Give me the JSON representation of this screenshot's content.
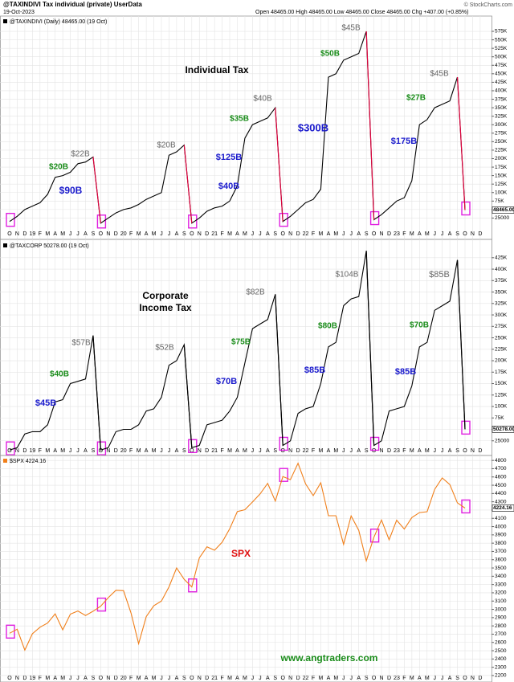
{
  "header": {
    "title": "@TAXINDIVI Tax individual (private) UserData",
    "date": "19-Oct-2023",
    "ohlc": "Open 48465.00  High 48465.00  Low 48465.00  Close 48465.00  Chg +407.00 (+0.85%)",
    "source": "© StockCharts.com"
  },
  "chart_data": [
    {
      "type": "line",
      "grid": true,
      "categories": [
        "O",
        "N",
        "D",
        "19",
        "F",
        "M",
        "A",
        "M",
        "J",
        "J",
        "A",
        "S",
        "O",
        "N",
        "D",
        "20",
        "F",
        "M",
        "A",
        "M",
        "J",
        "J",
        "A",
        "S",
        "O",
        "N",
        "D",
        "21",
        "F",
        "M",
        "A",
        "M",
        "J",
        "J",
        "A",
        "S",
        "O",
        "N",
        "D",
        "22",
        "F",
        "M",
        "A",
        "M",
        "J",
        "J",
        "A",
        "S",
        "O",
        "N",
        "D",
        "23",
        "F",
        "M",
        "A",
        "M",
        "J",
        "J",
        "A",
        "S",
        "O",
        "N",
        "D"
      ],
      "series": [
        {
          "name": "@TAXINDIVI (Daily) 48465.00 (19 Oct)",
          "color": "#000000",
          "values": [
            15000,
            30000,
            50000,
            60000,
            70000,
            95000,
            145000,
            150000,
            160000,
            185000,
            190000,
            205000,
            10000,
            25000,
            40000,
            50000,
            55000,
            65000,
            80000,
            90000,
            100000,
            210000,
            220000,
            240000,
            10000,
            25000,
            45000,
            55000,
            60000,
            75000,
            120000,
            260000,
            300000,
            310000,
            320000,
            350000,
            15000,
            30000,
            50000,
            70000,
            80000,
            110000,
            440000,
            450000,
            490000,
            500000,
            510000,
            575000,
            20000,
            35000,
            55000,
            75000,
            85000,
            135000,
            300000,
            315000,
            350000,
            360000,
            370000,
            440000,
            48465,
            null,
            null
          ]
        }
      ],
      "last_value": 48465,
      "last_value_label": "48465.00",
      "reset_color": "#e0003c",
      "ylim": [
        0,
        620000
      ],
      "yticks": [
        {
          "value": 25000,
          "label": "25000"
        },
        {
          "value": 50000,
          "label": "50K"
        },
        {
          "value": 75000,
          "label": "75K"
        },
        {
          "value": 100000,
          "label": "100K"
        },
        {
          "value": 125000,
          "label": "125K"
        },
        {
          "value": 150000,
          "label": "150K"
        },
        {
          "value": 175000,
          "label": "175K"
        },
        {
          "value": 200000,
          "label": "200K"
        },
        {
          "value": 225000,
          "label": "225K"
        },
        {
          "value": 250000,
          "label": "250K"
        },
        {
          "value": 275000,
          "label": "275K"
        },
        {
          "value": 300000,
          "label": "300K"
        },
        {
          "value": 325000,
          "label": "325K"
        },
        {
          "value": 350000,
          "label": "350K"
        },
        {
          "value": 375000,
          "label": "375K"
        },
        {
          "value": 400000,
          "label": "400K"
        },
        {
          "value": 425000,
          "label": "425K"
        },
        {
          "value": 450000,
          "label": "450K"
        },
        {
          "value": 475000,
          "label": "475K"
        },
        {
          "value": 500000,
          "label": "500K"
        },
        {
          "value": 525000,
          "label": "525K"
        },
        {
          "value": 550000,
          "label": "550K"
        },
        {
          "value": 575000,
          "label": "575K"
        }
      ],
      "annotations": [
        {
          "text": "Individual Tax",
          "color": "#000000"
        },
        {
          "text": "$20B",
          "color": "#1a8c1a"
        },
        {
          "text": "$22B",
          "color": "#666666"
        },
        {
          "text": "$90B",
          "color": "#1a1acc"
        },
        {
          "text": "$20B",
          "color": "#666666"
        },
        {
          "text": "$40B",
          "color": "#666666"
        },
        {
          "text": "$35B",
          "color": "#1a8c1a"
        },
        {
          "text": "$125B",
          "color": "#1a1acc"
        },
        {
          "text": "$40B",
          "color": "#1a1acc"
        },
        {
          "text": "$45B",
          "color": "#666666"
        },
        {
          "text": "$50B",
          "color": "#1a8c1a"
        },
        {
          "text": "$300B",
          "color": "#1a1acc"
        },
        {
          "text": "$45B",
          "color": "#666666"
        },
        {
          "text": "$27B",
          "color": "#1a8c1a"
        },
        {
          "text": "$175B",
          "color": "#1a1acc"
        }
      ]
    },
    {
      "type": "line",
      "grid": true,
      "categories": [
        "O",
        "N",
        "D",
        "19",
        "F",
        "M",
        "A",
        "M",
        "J",
        "J",
        "A",
        "S",
        "O",
        "N",
        "D",
        "20",
        "F",
        "M",
        "A",
        "M",
        "J",
        "J",
        "A",
        "S",
        "O",
        "N",
        "D",
        "21",
        "F",
        "M",
        "A",
        "M",
        "J",
        "J",
        "A",
        "S",
        "O",
        "N",
        "D",
        "22",
        "F",
        "M",
        "A",
        "M",
        "J",
        "J",
        "A",
        "S",
        "O",
        "N",
        "D",
        "23",
        "F",
        "M",
        "A",
        "M",
        "J",
        "J",
        "A",
        "S",
        "O",
        "N",
        "D"
      ],
      "series": [
        {
          "name": "@TAXCORP 50278.00 (19 Oct)",
          "color": "#000000",
          "values": [
            5000,
            10000,
            40000,
            45000,
            45000,
            60000,
            110000,
            115000,
            150000,
            155000,
            160000,
            255000,
            5000,
            10000,
            45000,
            50000,
            50000,
            60000,
            90000,
            95000,
            120000,
            190000,
            200000,
            235000,
            10000,
            15000,
            60000,
            65000,
            70000,
            90000,
            120000,
            195000,
            270000,
            280000,
            290000,
            345000,
            15000,
            25000,
            85000,
            95000,
            100000,
            150000,
            230000,
            240000,
            320000,
            335000,
            340000,
            440000,
            15000,
            25000,
            90000,
            95000,
            100000,
            145000,
            230000,
            240000,
            310000,
            320000,
            330000,
            420000,
            50278,
            null,
            null
          ]
        }
      ],
      "last_value": 50278,
      "last_value_label": "50278.00",
      "reset_color": "#000000",
      "ylim": [
        0,
        458000
      ],
      "yticks": [
        {
          "value": 25000,
          "label": "25000"
        },
        {
          "value": 50000,
          "label": "50K"
        },
        {
          "value": 75000,
          "label": "75K"
        },
        {
          "value": 100000,
          "label": "100K"
        },
        {
          "value": 125000,
          "label": "125K"
        },
        {
          "value": 150000,
          "label": "150K"
        },
        {
          "value": 175000,
          "label": "175K"
        },
        {
          "value": 200000,
          "label": "200K"
        },
        {
          "value": 225000,
          "label": "225K"
        },
        {
          "value": 250000,
          "label": "250K"
        },
        {
          "value": 275000,
          "label": "275K"
        },
        {
          "value": 300000,
          "label": "300K"
        },
        {
          "value": 325000,
          "label": "325K"
        },
        {
          "value": 350000,
          "label": "350K"
        },
        {
          "value": 375000,
          "label": "375K"
        },
        {
          "value": 400000,
          "label": "400K"
        },
        {
          "value": 425000,
          "label": "425K"
        }
      ],
      "annotations": [
        {
          "text": "Corporate",
          "color": "#000000"
        },
        {
          "text": "Income Tax",
          "color": "#000000"
        },
        {
          "text": "$57B",
          "color": "#666666"
        },
        {
          "text": "$40B",
          "color": "#1a8c1a"
        },
        {
          "text": "$45B",
          "color": "#1a1acc"
        },
        {
          "text": "$52B",
          "color": "#666666"
        },
        {
          "text": "$82B",
          "color": "#666666"
        },
        {
          "text": "$75B",
          "color": "#1a8c1a"
        },
        {
          "text": "$70B",
          "color": "#1a1acc"
        },
        {
          "text": "$104B",
          "color": "#666666"
        },
        {
          "text": "$80B",
          "color": "#1a8c1a"
        },
        {
          "text": "$85B",
          "color": "#1a1acc"
        },
        {
          "text": "$85B",
          "color": "#666666"
        },
        {
          "text": "$70B",
          "color": "#1a8c1a"
        },
        {
          "text": "$85B",
          "color": "#1a1acc"
        }
      ]
    },
    {
      "type": "line",
      "grid": true,
      "categories": [
        "O",
        "N",
        "D",
        "19",
        "F",
        "M",
        "A",
        "M",
        "J",
        "J",
        "A",
        "S",
        "O",
        "N",
        "D",
        "20",
        "F",
        "M",
        "A",
        "M",
        "J",
        "J",
        "A",
        "S",
        "O",
        "N",
        "D",
        "21",
        "F",
        "M",
        "A",
        "M",
        "J",
        "J",
        "A",
        "S",
        "O",
        "N",
        "D",
        "22",
        "F",
        "M",
        "A",
        "M",
        "J",
        "J",
        "A",
        "S",
        "O",
        "N",
        "D",
        "23",
        "F",
        "M",
        "A",
        "M",
        "J",
        "J",
        "A",
        "S",
        "O",
        "N",
        "D"
      ],
      "series": [
        {
          "name": "$SPX 4224.16",
          "color": "#f07f1a",
          "values": [
            2711,
            2760,
            2507,
            2704,
            2784,
            2834,
            2946,
            2752,
            2942,
            2980,
            2926,
            2977,
            3038,
            3141,
            3231,
            3226,
            2954,
            2585,
            2912,
            3044,
            3100,
            3271,
            3500,
            3363,
            3270,
            3622,
            3756,
            3714,
            3811,
            3973,
            4181,
            4204,
            4298,
            4395,
            4523,
            4308,
            4605,
            4567,
            4766,
            4516,
            4374,
            4530,
            4132,
            4132,
            3785,
            4130,
            3955,
            3586,
            3872,
            4080,
            3840,
            4077,
            3970,
            4109,
            4169,
            4180,
            4450,
            4589,
            4508,
            4288,
            4224.16,
            null,
            null
          ]
        }
      ],
      "last_value": 4224.16,
      "last_value_label": "4224.16",
      "ylim": [
        2180,
        4850
      ],
      "yticks": [
        2200,
        2300,
        2400,
        2500,
        2600,
        2700,
        2800,
        2900,
        3000,
        3100,
        3200,
        3300,
        3400,
        3500,
        3600,
        3700,
        3800,
        3900,
        4000,
        4100,
        4200,
        4300,
        4400,
        4500,
        4600,
        4700,
        4800
      ],
      "annotations": [
        {
          "text": "SPX",
          "color": "#e01010"
        },
        {
          "text": "www.angtraders.com",
          "color": "#1a8c1a"
        }
      ]
    }
  ]
}
